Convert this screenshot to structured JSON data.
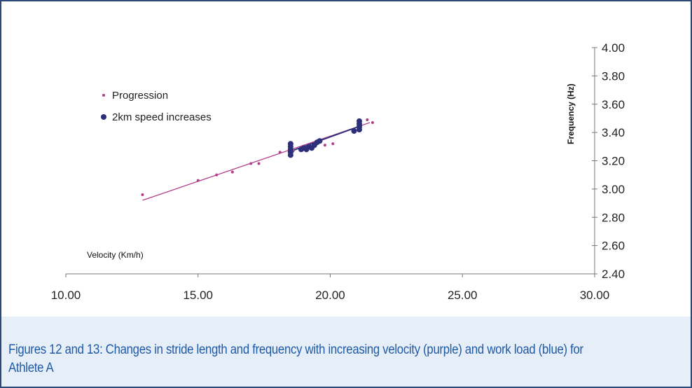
{
  "chart_data": {
    "type": "scatter",
    "x_axis": {
      "label": "Velocity (Km/h)",
      "range": [
        10,
        30
      ],
      "ticks": [
        "10.00",
        "15.00",
        "20.00",
        "25.00",
        "30.00"
      ]
    },
    "y_axis": {
      "label": "Frequency (Hz)",
      "range": [
        2.4,
        4.0
      ],
      "ticks": [
        "2.40",
        "2.60",
        "2.80",
        "3.00",
        "3.20",
        "3.40",
        "3.60",
        "3.80",
        "4.00"
      ]
    },
    "grid": false,
    "legend_position": "top-left",
    "series": [
      {
        "name": "Progression",
        "color": "#b0408a",
        "marker": "small-dot",
        "points": [
          [
            12.9,
            2.96
          ],
          [
            15.0,
            3.06
          ],
          [
            15.7,
            3.1
          ],
          [
            16.3,
            3.12
          ],
          [
            17.0,
            3.18
          ],
          [
            17.3,
            3.18
          ],
          [
            18.1,
            3.26
          ],
          [
            18.6,
            3.27
          ],
          [
            19.2,
            3.29
          ],
          [
            19.8,
            3.31
          ],
          [
            20.1,
            3.32
          ],
          [
            21.4,
            3.49
          ],
          [
            21.6,
            3.47
          ]
        ],
        "trendline": {
          "from": [
            12.9,
            2.92
          ],
          "to": [
            21.5,
            3.47
          ]
        }
      },
      {
        "name": "2km speed increases",
        "color": "#2d2f7a",
        "marker": "large-dot",
        "points": [
          [
            18.5,
            3.24
          ],
          [
            18.5,
            3.26
          ],
          [
            18.5,
            3.28
          ],
          [
            18.5,
            3.3
          ],
          [
            18.5,
            3.32
          ],
          [
            18.9,
            3.28
          ],
          [
            19.0,
            3.29
          ],
          [
            19.1,
            3.28
          ],
          [
            19.2,
            3.3
          ],
          [
            19.3,
            3.29
          ],
          [
            19.4,
            3.31
          ],
          [
            19.5,
            3.33
          ],
          [
            19.6,
            3.34
          ],
          [
            20.9,
            3.41
          ],
          [
            21.1,
            3.42
          ],
          [
            21.1,
            3.44
          ],
          [
            21.1,
            3.46
          ],
          [
            21.1,
            3.48
          ]
        ],
        "trendline": {
          "from": [
            18.4,
            3.26
          ],
          "to": [
            21.2,
            3.45
          ]
        }
      }
    ]
  },
  "caption": "Figures 12 and 13: Changes in stride length and frequency with increasing velocity (purple) and work load (blue) for Athlete A"
}
